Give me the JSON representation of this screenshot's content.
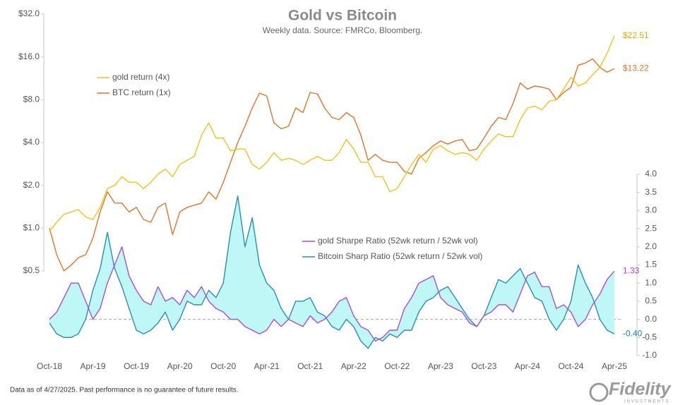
{
  "chart_data": {
    "type": "line",
    "title": "Gold vs Bitcoin",
    "subtitle": "Weekly data.  Source: FMRCo, Bloomberg.",
    "footnote": "Data as of 4/27/2025. Past performance is no guarantee of future results.",
    "brand": "Fidelity",
    "brand_sub": "INVESTMENTS",
    "categories": [
      "Oct-18",
      null,
      null,
      null,
      null,
      null,
      "Apr-19",
      null,
      null,
      null,
      null,
      null,
      "Oct-19",
      null,
      null,
      null,
      null,
      null,
      "Apr-20",
      null,
      null,
      null,
      null,
      null,
      "Oct-20",
      null,
      null,
      null,
      null,
      null,
      "Apr-21",
      null,
      null,
      null,
      null,
      null,
      "Oct-21",
      null,
      null,
      null,
      null,
      null,
      "Apr-22",
      null,
      null,
      null,
      null,
      null,
      "Oct-22",
      null,
      null,
      null,
      null,
      null,
      "Apr-23",
      null,
      null,
      null,
      null,
      null,
      "Oct-23",
      null,
      null,
      null,
      null,
      null,
      "Apr-24",
      null,
      null,
      null,
      null,
      null,
      "Oct-24",
      null,
      null,
      null,
      null,
      null,
      "Apr-25"
    ],
    "ylog": true,
    "ylim": [
      0.5,
      32
    ],
    "yticks": [
      {
        "value": 0.5,
        "label": "$0.5"
      },
      {
        "value": 1,
        "label": "$1.0"
      },
      {
        "value": 2,
        "label": "$2.0"
      },
      {
        "value": 4,
        "label": "$4.0"
      },
      {
        "value": 8,
        "label": "$8.0"
      },
      {
        "value": 16,
        "label": "$16.0"
      },
      {
        "value": 32,
        "label": "$32.0"
      }
    ],
    "y2lim": [
      -1,
      4
    ],
    "y2ticks": [
      {
        "value": -1,
        "label": "-1.0"
      },
      {
        "value": -0.5,
        "label": "-0.5"
      },
      {
        "value": 0,
        "label": "0.0"
      },
      {
        "value": 0.5,
        "label": "0.5"
      },
      {
        "value": 1,
        "label": "1.0"
      },
      {
        "value": 1.5,
        "label": "1.5"
      },
      {
        "value": 2,
        "label": "2.0"
      },
      {
        "value": 2.5,
        "label": "2.5"
      },
      {
        "value": 3,
        "label": "3.0"
      },
      {
        "value": 3.5,
        "label": "3.5"
      },
      {
        "value": 4,
        "label": "4.0"
      }
    ],
    "y2_refline": 0,
    "fill_between_y2": "#bff6f6",
    "series": [
      {
        "name": "gold return (4x)",
        "color": "#f2c11c",
        "label_color": "#e0aa00",
        "end_label": "$22.51",
        "values": [
          0.95,
          1.1,
          1.25,
          1.3,
          1.35,
          1.2,
          1.15,
          1.4,
          1.9,
          2.0,
          2.3,
          2.1,
          2.1,
          1.9,
          2.1,
          2.4,
          2.6,
          2.3,
          2.8,
          3.0,
          3.2,
          4.5,
          5.5,
          4.3,
          4.3,
          3.5,
          3.6,
          3.6,
          2.8,
          2.6,
          2.9,
          3.4,
          3.0,
          3.1,
          3.0,
          2.8,
          3.0,
          3.2,
          3.0,
          3.0,
          3.4,
          4.2,
          3.6,
          2.9,
          2.9,
          2.3,
          2.3,
          1.8,
          1.9,
          2.3,
          2.8,
          3.3,
          2.9,
          3.6,
          3.8,
          3.5,
          3.3,
          3.4,
          3.3,
          3.0,
          3.6,
          4.1,
          4.6,
          4.4,
          4.4,
          5.8,
          7.0,
          7.2,
          6.8,
          7.8,
          8.0,
          9.5,
          11.5,
          10.0,
          10.5,
          12.0,
          13.5,
          17,
          22.51
        ]
      },
      {
        "name": "BTC return (1x)",
        "color": "#e2742a",
        "label_color": "#e2742a",
        "end_label": "$13.22",
        "values": [
          1.0,
          0.65,
          0.5,
          0.55,
          0.62,
          0.65,
          0.85,
          1.3,
          1.8,
          1.5,
          1.5,
          1.3,
          1.4,
          1.15,
          1.1,
          1.4,
          1.5,
          0.9,
          1.3,
          1.4,
          1.45,
          1.5,
          1.8,
          1.6,
          2.1,
          2.9,
          4.0,
          5.2,
          7.0,
          8.9,
          8.5,
          5.5,
          5.0,
          5.2,
          7.0,
          6.5,
          9.0,
          8.8,
          7.0,
          6.0,
          5.8,
          6.5,
          6.0,
          4.5,
          3.0,
          3.3,
          3.0,
          2.9,
          2.9,
          2.5,
          2.4,
          3.1,
          3.4,
          3.8,
          4.1,
          3.9,
          4.1,
          4.2,
          3.5,
          3.6,
          4.3,
          5.2,
          6.0,
          5.8,
          7.5,
          10.5,
          9.5,
          10.0,
          9.8,
          9.5,
          8.0,
          9.0,
          9.8,
          14.0,
          14.5,
          15.5,
          13.5,
          12.5,
          13.22
        ]
      },
      {
        "name": "gold Sharpe Ratio (52wk return / 52wk vol)",
        "axis": "y2",
        "color": "#a64fd6",
        "label_color": "#a13fc9",
        "end_label": "1.33",
        "values": [
          0.0,
          0.2,
          0.6,
          1.0,
          1.0,
          0.5,
          0.0,
          0.3,
          1.0,
          1.5,
          2.0,
          1.2,
          0.8,
          0.5,
          0.4,
          0.9,
          0.5,
          0.6,
          0.4,
          0.8,
          0.6,
          0.9,
          0.5,
          0.3,
          0.2,
          0.0,
          0.0,
          -0.2,
          -0.3,
          -0.4,
          -0.3,
          0.0,
          -0.2,
          0.0,
          -0.1,
          -0.2,
          0.1,
          -0.1,
          0.0,
          0.2,
          0.5,
          0.6,
          0.1,
          -0.2,
          -0.3,
          -0.6,
          -0.5,
          -0.3,
          -0.3,
          0.3,
          0.6,
          1.0,
          1.1,
          1.2,
          0.6,
          0.4,
          0.3,
          0.2,
          -0.1,
          -0.2,
          0.1,
          0.2,
          0.4,
          0.4,
          0.2,
          0.7,
          1.2,
          1.3,
          0.9,
          0.9,
          0.3,
          0.4,
          0.2,
          -0.2,
          0.0,
          0.4,
          0.7,
          1.1,
          1.33
        ]
      },
      {
        "name": "Bitcoin Sharp Ratio (52wk return / 52wk vol)",
        "axis": "y2",
        "color": "#2b8db3",
        "label_color": "#1f7fa8",
        "end_label": "-0.40",
        "values": [
          -0.1,
          -0.4,
          -0.5,
          -0.5,
          -0.4,
          0.0,
          0.8,
          1.4,
          2.4,
          1.4,
          0.9,
          0.3,
          -0.3,
          -0.4,
          -0.3,
          -0.1,
          0.2,
          -0.3,
          0.0,
          0.5,
          0.4,
          0.4,
          0.8,
          0.6,
          1.0,
          2.4,
          3.4,
          2.0,
          2.8,
          1.5,
          1.0,
          0.8,
          0.3,
          0.0,
          0.5,
          0.5,
          0.6,
          0.2,
          0.1,
          -0.2,
          -0.3,
          0.0,
          -0.2,
          -0.6,
          -0.8,
          -0.5,
          -0.6,
          -0.4,
          -0.5,
          -0.3,
          -0.3,
          0.2,
          0.5,
          0.6,
          0.8,
          0.9,
          0.6,
          0.3,
          0.0,
          -0.2,
          0.1,
          0.6,
          1.1,
          1.0,
          1.2,
          1.4,
          1.0,
          0.6,
          0.5,
          0.0,
          -0.3,
          0.0,
          0.5,
          1.5,
          1.0,
          0.6,
          0.0,
          -0.3,
          -0.4
        ]
      }
    ]
  }
}
